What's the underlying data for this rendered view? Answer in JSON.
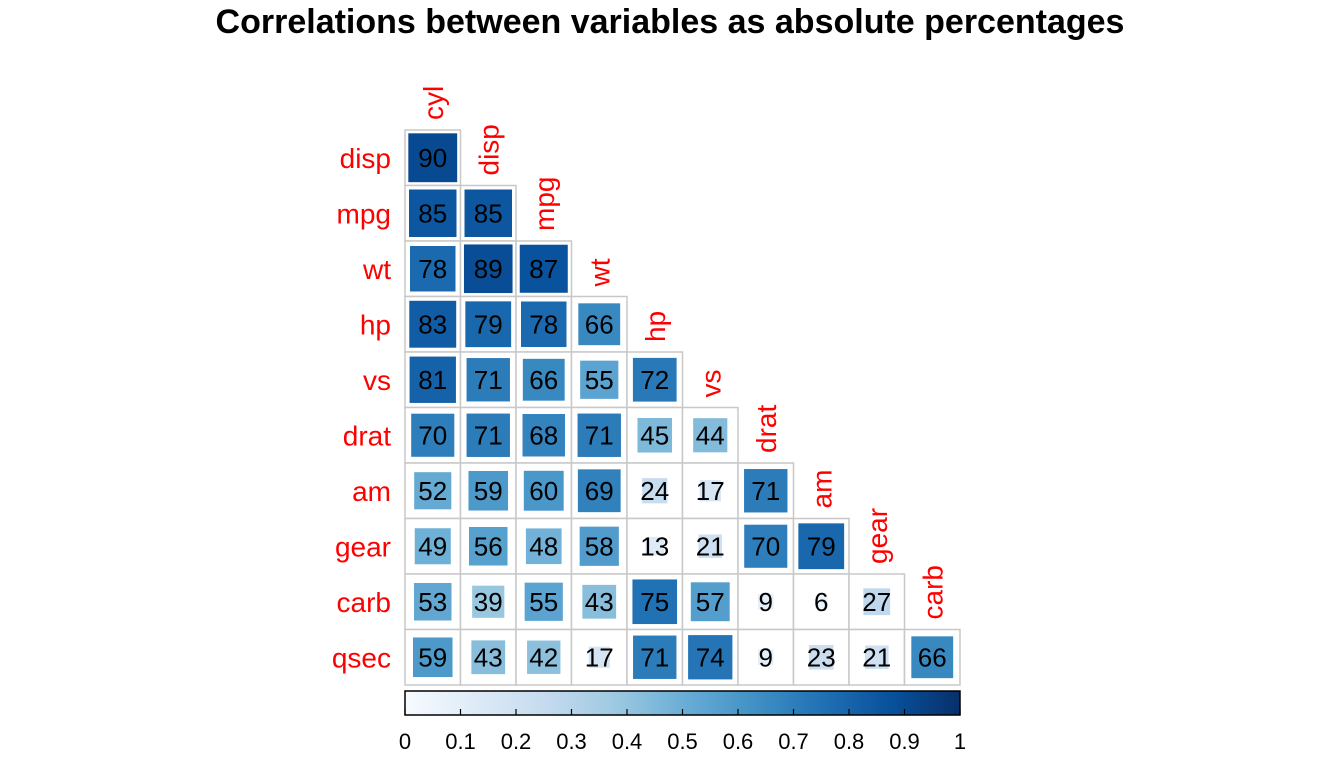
{
  "chart_data": {
    "type": "heatmap",
    "title": "Correlations between variables as absolute percentages",
    "row_labels": [
      "disp",
      "mpg",
      "wt",
      "hp",
      "vs",
      "drat",
      "am",
      "gear",
      "carb",
      "qsec"
    ],
    "col_labels": [
      "cyl",
      "disp",
      "mpg",
      "wt",
      "hp",
      "vs",
      "drat",
      "am",
      "gear",
      "carb"
    ],
    "layout": "lower-triangle",
    "values": [
      [
        90
      ],
      [
        85,
        85
      ],
      [
        78,
        89,
        87
      ],
      [
        83,
        79,
        78,
        66
      ],
      [
        81,
        71,
        66,
        55,
        72
      ],
      [
        70,
        71,
        68,
        71,
        45,
        44
      ],
      [
        52,
        59,
        60,
        69,
        24,
        17,
        71
      ],
      [
        49,
        56,
        48,
        58,
        13,
        21,
        70,
        79
      ],
      [
        53,
        39,
        55,
        43,
        75,
        57,
        9,
        6,
        27
      ],
      [
        59,
        43,
        42,
        17,
        71,
        74,
        9,
        23,
        21,
        66
      ]
    ],
    "colorbar": {
      "range": [
        0,
        1
      ],
      "ticks": [
        "0",
        "0.1",
        "0.2",
        "0.3",
        "0.4",
        "0.5",
        "0.6",
        "0.7",
        "0.8",
        "0.9",
        "1"
      ],
      "colors": [
        "#F7FBFF",
        "#DEEBF7",
        "#C6DBEF",
        "#9ECAE1",
        "#6BAED6",
        "#4292C6",
        "#2171B5",
        "#08519C",
        "#08306B"
      ]
    },
    "label_color": "#FF0000",
    "grid_color": "#C8C8C8"
  }
}
